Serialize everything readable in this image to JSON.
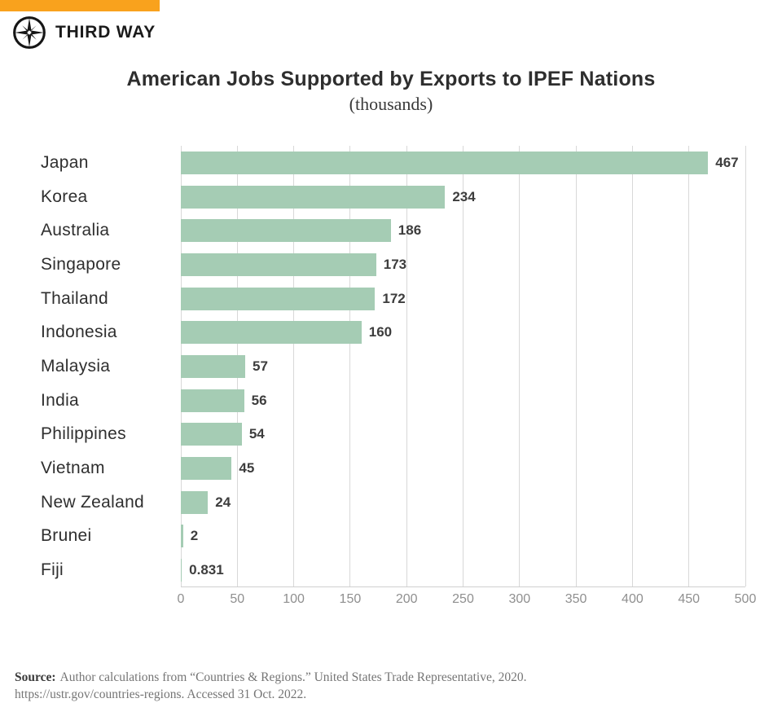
{
  "brand": {
    "name": "THIRD WAY",
    "accent_color": "#F9A21D",
    "logo_icon": "compass-icon"
  },
  "chart_data": {
    "type": "bar",
    "orientation": "horizontal",
    "title": "American Jobs Supported by Exports to IPEF Nations",
    "subtitle": "(thousands)",
    "categories": [
      "Japan",
      "Korea",
      "Australia",
      "Singapore",
      "Thailand",
      "Indonesia",
      "Malaysia",
      "India",
      "Philippines",
      "Vietnam",
      "New Zealand",
      "Brunei",
      "Fiji"
    ],
    "values": [
      467,
      234,
      186,
      173,
      172,
      160,
      57,
      56,
      54,
      45,
      24,
      2,
      0.831
    ],
    "xlim": [
      0,
      500
    ],
    "x_ticks": [
      0,
      50,
      100,
      150,
      200,
      250,
      300,
      350,
      400,
      450,
      500
    ],
    "bar_color": "#A5CCB4",
    "gridline_color": "#D8D8D8",
    "grid": true,
    "legend": "none",
    "value_labels_shown": true
  },
  "source": {
    "label": "Source:",
    "line1": "Author calculations from “Countries & Regions.” United States Trade Representative, 2020.",
    "line2": "https://ustr.gov/countries-regions. Accessed 31 Oct. 2022."
  }
}
